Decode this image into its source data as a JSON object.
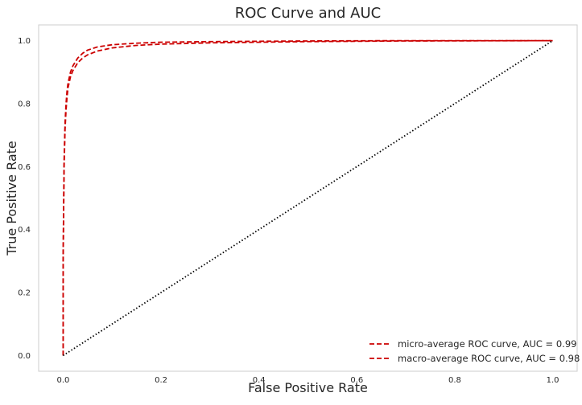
{
  "chart_data": {
    "type": "line",
    "title": "ROC Curve and AUC",
    "xlabel": "False Positive Rate",
    "ylabel": "True Positive Rate",
    "xlim": [
      -0.05,
      1.05
    ],
    "ylim": [
      -0.05,
      1.05
    ],
    "grid": false,
    "legend_position": "bottom-right",
    "xticks": [
      0.0,
      0.2,
      0.4,
      0.6,
      0.8,
      1.0
    ],
    "yticks": [
      0.0,
      0.2,
      0.4,
      0.6,
      0.8,
      1.0
    ],
    "xtick_labels": [
      "0.0",
      "0.2",
      "0.4",
      "0.6",
      "0.8",
      "1.0"
    ],
    "ytick_labels": [
      "0.0",
      "0.2",
      "0.4",
      "0.6",
      "0.8",
      "1.0"
    ],
    "series": [
      {
        "name": "micro-average ROC curve, AUC = 0.99",
        "color": "#cc0000",
        "style": "dashed",
        "x": [
          0.0,
          0.0,
          0.002,
          0.004,
          0.006,
          0.008,
          0.01,
          0.015,
          0.02,
          0.03,
          0.04,
          0.05,
          0.07,
          0.1,
          0.15,
          0.2,
          0.3,
          0.5,
          0.7,
          1.0
        ],
        "y": [
          0.0,
          0.3,
          0.62,
          0.74,
          0.8,
          0.84,
          0.865,
          0.9,
          0.92,
          0.945,
          0.96,
          0.97,
          0.98,
          0.987,
          0.992,
          0.995,
          0.997,
          0.999,
          1.0,
          1.0
        ]
      },
      {
        "name": "macro-average ROC curve, AUC = 0.98",
        "color": "#cc0000",
        "style": "dashed",
        "x": [
          0.0,
          0.0,
          0.002,
          0.004,
          0.006,
          0.008,
          0.01,
          0.015,
          0.02,
          0.03,
          0.04,
          0.05,
          0.07,
          0.1,
          0.15,
          0.2,
          0.3,
          0.5,
          0.7,
          1.0
        ],
        "y": [
          0.0,
          0.3,
          0.6,
          0.72,
          0.78,
          0.82,
          0.85,
          0.885,
          0.905,
          0.93,
          0.945,
          0.955,
          0.967,
          0.977,
          0.985,
          0.989,
          0.993,
          0.997,
          0.999,
          1.0
        ]
      },
      {
        "name": "",
        "color": "#000000",
        "style": "dotted",
        "x": [
          0.0,
          1.0
        ],
        "y": [
          0.0,
          1.0
        ]
      }
    ],
    "legend": [
      {
        "label": "micro-average ROC curve, AUC = 0.99",
        "color": "#cc0000",
        "style": "dashed"
      },
      {
        "label": "macro-average ROC curve, AUC = 0.98",
        "color": "#cc0000",
        "style": "dashed"
      }
    ]
  }
}
